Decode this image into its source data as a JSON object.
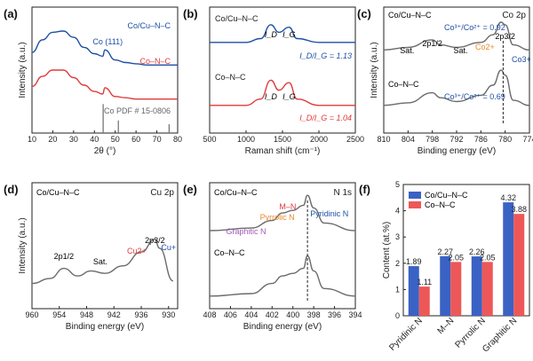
{
  "chart_data": [
    {
      "panel": "(a)",
      "type": "line",
      "xlabel": "2θ (°)",
      "ylabel": "Intensity (a.u.)",
      "xlim": [
        10,
        80
      ],
      "xticks": [
        10,
        20,
        30,
        40,
        50,
        60,
        70,
        80
      ],
      "series": [
        {
          "name": "Co/Cu–N–C",
          "color": "#1f4fa3",
          "x": [
            10,
            15,
            20,
            25,
            30,
            35,
            40,
            44,
            45,
            50,
            55,
            60,
            65,
            70,
            75,
            80
          ],
          "y": [
            0.64,
            0.74,
            0.8,
            0.81,
            0.76,
            0.68,
            0.63,
            0.61,
            0.66,
            0.58,
            0.56,
            0.55,
            0.54,
            0.54,
            0.54,
            0.54
          ]
        },
        {
          "name": "Co–N–C",
          "color": "#e03a3a",
          "x": [
            10,
            15,
            20,
            25,
            30,
            35,
            40,
            44,
            45,
            50,
            55,
            60,
            65,
            70,
            75,
            80
          ],
          "y": [
            0.37,
            0.45,
            0.5,
            0.5,
            0.44,
            0.38,
            0.33,
            0.31,
            0.36,
            0.29,
            0.28,
            0.27,
            0.27,
            0.27,
            0.27,
            0.27
          ]
        },
        {
          "name": "Co PDF # 15-0806",
          "color": "#777777",
          "type": "stick",
          "x": [
            44.2,
            51.5,
            75.9
          ],
          "y": [
            0.23,
            0.1,
            0.07
          ]
        }
      ],
      "annotations": [
        "Co (111)"
      ]
    },
    {
      "panel": "(b)",
      "type": "line",
      "xlabel": "Raman shift (cm⁻¹)",
      "xlim": [
        500,
        2500
      ],
      "xticks": [
        500,
        1000,
        1500,
        2000,
        2500
      ],
      "series": [
        {
          "name": "Co/Cu–N–C",
          "color": "#1f4fa3",
          "x": [
            500,
            1000,
            1200,
            1340,
            1450,
            1590,
            1700,
            2000,
            2500
          ],
          "y": [
            0.72,
            0.72,
            0.75,
            0.86,
            0.8,
            0.84,
            0.75,
            0.72,
            0.72
          ]
        },
        {
          "name": "Co–N–C",
          "color": "#e03a3a",
          "x": [
            500,
            1000,
            1200,
            1340,
            1450,
            1590,
            1700,
            2000,
            2500
          ],
          "y": [
            0.22,
            0.22,
            0.27,
            0.42,
            0.34,
            0.4,
            0.27,
            0.22,
            0.22
          ]
        }
      ],
      "ratios": [
        {
          "sample": "Co/Cu–N–C",
          "ID_IG": 1.13
        },
        {
          "sample": "Co–N–C",
          "ID_IG": 1.04
        }
      ],
      "peak_labels": [
        "I_D",
        "I_G"
      ]
    },
    {
      "panel": "(c)",
      "type": "line",
      "title": "Co 2p",
      "xlabel": "Binding energy (eV)",
      "ylabel": "Intensity (a.u.)",
      "xlim": [
        810,
        774
      ],
      "xticks": [
        810,
        804,
        798,
        792,
        786,
        780,
        774
      ],
      "series": [
        {
          "name": "Co/Cu–N–C",
          "x": [
            810,
            804,
            798,
            796,
            792,
            786,
            783,
            781,
            780,
            778,
            774
          ],
          "y": [
            0.66,
            0.68,
            0.74,
            0.7,
            0.68,
            0.72,
            0.78,
            0.88,
            0.86,
            0.7,
            0.66
          ]
        },
        {
          "name": "Co–N–C",
          "x": [
            810,
            804,
            798,
            796,
            792,
            786,
            783,
            781,
            780,
            778,
            774
          ],
          "y": [
            0.22,
            0.24,
            0.32,
            0.28,
            0.25,
            0.3,
            0.38,
            0.5,
            0.46,
            0.26,
            0.22
          ]
        }
      ],
      "ratios": [
        {
          "sample": "Co/Cu–N–C",
          "Co3+/Co2+": 0.92
        },
        {
          "sample": "Co–N–C",
          "Co3+/Co2+": 0.69
        }
      ],
      "labels": [
        "Sat.",
        "2p1/2",
        "Sat.",
        "Co2+",
        "2p3/2",
        "Co3+"
      ]
    },
    {
      "panel": "(d)",
      "type": "line",
      "title": "Cu 2p",
      "sample": "Co/Cu–N–C",
      "xlabel": "Binding energy (eV)",
      "ylabel": "Intensity (a.u.)",
      "xlim": [
        960,
        928
      ],
      "xticks": [
        960,
        954,
        948,
        942,
        936,
        930
      ],
      "series": [
        {
          "name": "Co/Cu–N–C",
          "x": [
            960,
            956,
            953,
            950,
            947,
            944,
            940,
            936,
            933,
            932,
            929
          ],
          "y": [
            0.2,
            0.24,
            0.32,
            0.26,
            0.3,
            0.28,
            0.34,
            0.45,
            0.55,
            0.48,
            0.22
          ]
        }
      ],
      "labels": [
        "2p1/2",
        "Sat.",
        "2p3/2",
        "Cu2+",
        "Cu+"
      ]
    },
    {
      "panel": "(e)",
      "type": "line",
      "title": "N 1s",
      "xlabel": "Binding energy (eV)",
      "xlim": [
        408,
        394
      ],
      "xticks": [
        408,
        406,
        404,
        402,
        400,
        398,
        396,
        394
      ],
      "series": [
        {
          "name": "Co/Cu–N–C",
          "x": [
            408,
            404,
            402,
            401,
            400,
            399,
            398.6,
            398,
            397,
            394
          ],
          "y": [
            0.62,
            0.64,
            0.7,
            0.76,
            0.78,
            0.82,
            0.9,
            0.8,
            0.68,
            0.62
          ]
        },
        {
          "name": "Co–N–C",
          "x": [
            408,
            404,
            402,
            401,
            400,
            399,
            398.6,
            398,
            397,
            394
          ],
          "y": [
            0.1,
            0.12,
            0.2,
            0.26,
            0.28,
            0.32,
            0.42,
            0.3,
            0.16,
            0.1
          ]
        }
      ],
      "labels": [
        "M–N",
        "Pyrrolic N",
        "Pyridinic N",
        "Graphitic N"
      ]
    },
    {
      "panel": "(f)",
      "type": "bar",
      "ylabel": "Content (at.%)",
      "ylim": [
        0,
        5
      ],
      "yticks": [
        0,
        1,
        2,
        3,
        4,
        5
      ],
      "categories": [
        "Pyridinic N",
        "M–N",
        "Pyrrolic N",
        "Graphitic N"
      ],
      "series": [
        {
          "name": "Co/Cu–N–C",
          "color": "#3a62c4",
          "values": [
            1.89,
            2.27,
            2.26,
            4.32
          ]
        },
        {
          "name": "Co–N–C",
          "color": "#ee5757",
          "values": [
            1.11,
            2.05,
            2.05,
            3.88
          ]
        }
      ]
    }
  ]
}
